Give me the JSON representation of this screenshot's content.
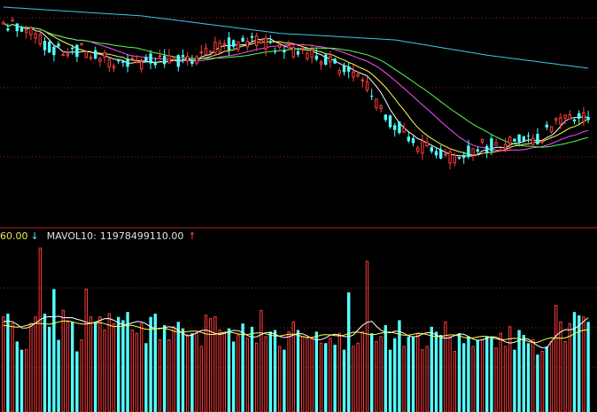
{
  "legend": {
    "vol_value": "60.00",
    "vol_arrow": "↓",
    "mavol_label": "MAVOL10:",
    "mavol_value": "11978499110.00",
    "mavol_arrow": "↑"
  },
  "colors": {
    "up": "#ff3c3c",
    "down": "#54ffff",
    "gridline": "#a01e1e",
    "separator": "#b02020",
    "ma5": "#ffffff",
    "ma10": "#ffff4f",
    "ma20": "#ff4fff",
    "ma30": "#4fff4f",
    "ma60": "#3cc8e6",
    "mavol5": "#ffffff",
    "mavol10": "#ffff4f"
  },
  "chart_data": [
    {
      "type": "candlestick",
      "title": "",
      "seed": 20240517,
      "trend": [
        [
          0,
          102.5
        ],
        [
          6,
          101
        ],
        [
          10,
          96.5
        ],
        [
          18,
          96
        ],
        [
          26,
          92.5
        ],
        [
          33,
          94
        ],
        [
          40,
          93.5
        ],
        [
          48,
          97.5
        ],
        [
          56,
          98
        ],
        [
          63,
          96
        ],
        [
          70,
          94
        ],
        [
          78,
          89
        ],
        [
          84,
          80
        ],
        [
          90,
          74.5
        ],
        [
          97,
          71.5
        ],
        [
          103,
          74
        ],
        [
          110,
          75
        ],
        [
          116,
          76
        ],
        [
          121,
          80
        ],
        [
          127,
          81
        ]
      ],
      "y_range": [
        64,
        106
      ],
      "ma_series": [
        {
          "key": "ma5",
          "period": 5
        },
        {
          "key": "ma10",
          "period": 10
        },
        {
          "key": "ma20",
          "period": 20
        },
        {
          "key": "ma30",
          "period": 30
        },
        {
          "key": "ma60",
          "period": 60,
          "anchors": [
            [
              0,
              106
            ],
            [
              30,
              104
            ],
            [
              60,
              100
            ],
            [
              85,
              98.5
            ],
            [
              105,
              95
            ],
            [
              127,
              92
            ]
          ]
        }
      ]
    },
    {
      "type": "bar",
      "title": "",
      "series": "volume",
      "y_range": [
        0,
        100
      ],
      "values": [
        58,
        60,
        54,
        43,
        38,
        38,
        54,
        58,
        100,
        60,
        52,
        75,
        44,
        62,
        55,
        55,
        37,
        44,
        75,
        58,
        55,
        58,
        50,
        60,
        54,
        58,
        56,
        61,
        50,
        48,
        54,
        42,
        58,
        60,
        44,
        53,
        44,
        52,
        55,
        51,
        47,
        48,
        48,
        40,
        59,
        57,
        58,
        50,
        48,
        51,
        43,
        47,
        54,
        45,
        52,
        42,
        62,
        46,
        49,
        50,
        40,
        38,
        49,
        55,
        50,
        46,
        45,
        45,
        49,
        42,
        42,
        45,
        41,
        48,
        38,
        73,
        40,
        42,
        49,
        92,
        48,
        43,
        46,
        53,
        38,
        45,
        56,
        40,
        46,
        46,
        48,
        38,
        40,
        52,
        49,
        47,
        55,
        46,
        37,
        48,
        42,
        46,
        40,
        44,
        44,
        46,
        46,
        39,
        48,
        40,
        52,
        38,
        50,
        47,
        42,
        44,
        35,
        37,
        40,
        43,
        65,
        55,
        43,
        54,
        61,
        59,
        58,
        55
      ],
      "mavol5_anchors": [
        [
          0,
          55
        ],
        [
          4,
          52
        ],
        [
          8,
          55
        ],
        [
          12,
          60
        ],
        [
          16,
          55
        ],
        [
          20,
          56
        ],
        [
          26,
          55
        ],
        [
          34,
          52
        ],
        [
          40,
          48
        ],
        [
          48,
          49
        ],
        [
          55,
          47
        ],
        [
          62,
          47
        ],
        [
          70,
          45
        ],
        [
          76,
          48
        ],
        [
          80,
          55
        ],
        [
          84,
          48
        ],
        [
          92,
          47
        ],
        [
          100,
          46
        ],
        [
          108,
          44
        ],
        [
          114,
          43
        ],
        [
          118,
          40
        ],
        [
          122,
          50
        ],
        [
          127,
          56
        ]
      ],
      "mavol10_anchors": [
        [
          0,
          52
        ],
        [
          6,
          53
        ],
        [
          12,
          55
        ],
        [
          20,
          54
        ],
        [
          28,
          52
        ],
        [
          36,
          50
        ],
        [
          44,
          48
        ],
        [
          52,
          48
        ],
        [
          60,
          47
        ],
        [
          68,
          46
        ],
        [
          76,
          48
        ],
        [
          84,
          48
        ],
        [
          92,
          47
        ],
        [
          100,
          46
        ],
        [
          108,
          45
        ],
        [
          116,
          43
        ],
        [
          122,
          46
        ],
        [
          127,
          50
        ]
      ]
    }
  ]
}
